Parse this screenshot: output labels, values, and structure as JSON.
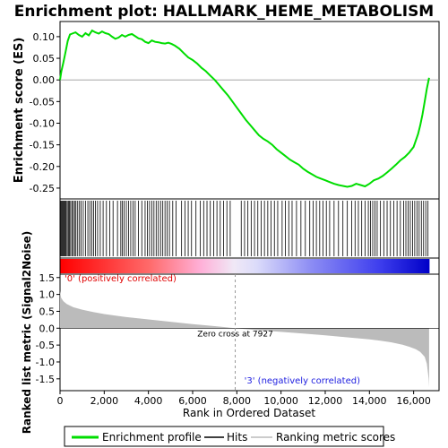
{
  "chart_data": {
    "type": "line",
    "title": "Enrichment plot: HALLMARK_HEME_METABOLISM",
    "es_panel": {
      "ylabel": "Enrichment score (ES)",
      "ylim": [
        -0.275,
        0.135
      ],
      "yticks": [
        0.1,
        0.05,
        0.0,
        -0.05,
        -0.1,
        -0.15,
        -0.2,
        -0.25
      ],
      "ytick_labels": [
        "0.10",
        "0.05",
        "0.00",
        "-0.05",
        "-0.10",
        "-0.15",
        "-0.20",
        "-0.25"
      ],
      "series": [
        {
          "name": "Enrichment profile",
          "color": "#00dd00",
          "x": [
            0,
            60,
            150,
            250,
            350,
            450,
            550,
            700,
            850,
            1000,
            1150,
            1300,
            1450,
            1600,
            1750,
            1900,
            2050,
            2200,
            2350,
            2500,
            2650,
            2800,
            2950,
            3100,
            3250,
            3400,
            3550,
            3700,
            3850,
            4000,
            4150,
            4300,
            4450,
            4600,
            4750,
            4900,
            5050,
            5200,
            5400,
            5600,
            5800,
            6000,
            6200,
            6400,
            6600,
            6800,
            7000,
            7200,
            7400,
            7600,
            7800,
            8000,
            8200,
            8400,
            8600,
            8800,
            9000,
            9200,
            9400,
            9600,
            9800,
            10000,
            10200,
            10400,
            10600,
            10800,
            11000,
            11200,
            11400,
            11600,
            11800,
            12000,
            12200,
            12400,
            12600,
            12800,
            13000,
            13200,
            13400,
            13600,
            13800,
            14000,
            14200,
            14400,
            14600,
            14800,
            15000,
            15200,
            15400,
            15600,
            15800,
            16000,
            16100,
            16200,
            16300,
            16400,
            16500,
            16600,
            16700
          ],
          "y": [
            0.0,
            0.02,
            0.04,
            0.065,
            0.09,
            0.105,
            0.107,
            0.11,
            0.104,
            0.1,
            0.108,
            0.103,
            0.114,
            0.11,
            0.107,
            0.112,
            0.108,
            0.106,
            0.1,
            0.095,
            0.098,
            0.104,
            0.1,
            0.104,
            0.106,
            0.101,
            0.096,
            0.094,
            0.088,
            0.085,
            0.091,
            0.088,
            0.087,
            0.085,
            0.084,
            0.086,
            0.083,
            0.079,
            0.072,
            0.062,
            0.052,
            0.046,
            0.038,
            0.028,
            0.02,
            0.01,
            0.0,
            -0.012,
            -0.024,
            -0.036,
            -0.05,
            -0.064,
            -0.078,
            -0.092,
            -0.104,
            -0.116,
            -0.128,
            -0.136,
            -0.142,
            -0.15,
            -0.16,
            -0.168,
            -0.176,
            -0.184,
            -0.19,
            -0.196,
            -0.205,
            -0.212,
            -0.218,
            -0.224,
            -0.228,
            -0.232,
            -0.236,
            -0.24,
            -0.243,
            -0.245,
            -0.247,
            -0.245,
            -0.24,
            -0.243,
            -0.246,
            -0.24,
            -0.232,
            -0.228,
            -0.222,
            -0.214,
            -0.205,
            -0.196,
            -0.186,
            -0.178,
            -0.168,
            -0.155,
            -0.14,
            -0.125,
            -0.105,
            -0.08,
            -0.05,
            -0.02,
            0.005
          ]
        }
      ]
    },
    "hits_panel": {
      "name": "Hits",
      "hit_ranks": [
        40,
        80,
        120,
        160,
        200,
        240,
        280,
        330,
        380,
        430,
        480,
        540,
        600,
        660,
        720,
        800,
        880,
        950,
        1050,
        1150,
        1260,
        1350,
        1440,
        1520,
        1600,
        1700,
        1820,
        1950,
        2100,
        2250,
        2400,
        2600,
        2750,
        2820,
        2900,
        3000,
        3100,
        3200,
        3300,
        3400,
        3550,
        3700,
        3850,
        3950,
        4050,
        4150,
        4250,
        4350,
        4450,
        4550,
        4650,
        4750,
        4850,
        4950,
        5100,
        5250,
        5500,
        5650,
        5800,
        5950,
        6150,
        6350,
        6500,
        6650,
        6800,
        6950,
        7100,
        7250,
        7400,
        7550,
        7700,
        8200,
        8350,
        8500,
        8650,
        8800,
        8950,
        9100,
        9250,
        9400,
        9550,
        9700,
        9850,
        10050,
        10200,
        10350,
        10500,
        10700,
        10900,
        11100,
        11300,
        11450,
        11600,
        11750,
        11900,
        12050,
        12200,
        12400,
        12600,
        12800,
        13000,
        13200,
        13350,
        13500,
        13650,
        13800,
        13950,
        14050,
        14150,
        14250,
        14350,
        14500,
        14650,
        14800,
        14950,
        15100,
        15250,
        15400,
        15550,
        15650,
        15750,
        15850,
        15950,
        16050,
        16150,
        16250,
        16350,
        16450,
        16550,
        16650
      ]
    },
    "metric_panel": {
      "name": "Ranking metric scores",
      "ylabel": "Ranked list metric (Signal2Noise)",
      "ylim": [
        -1.85,
        1.6
      ],
      "yticks": [
        1.5,
        1.0,
        0.5,
        0.0,
        -0.5,
        -1.0,
        -1.5
      ],
      "ytick_labels": [
        "1.5",
        "1.0",
        "0.5",
        "0.0",
        "-0.5",
        "-1.0",
        "-1.5"
      ],
      "x": [
        0,
        50,
        150,
        300,
        600,
        1000,
        1500,
        2000,
        3000,
        4000,
        5000,
        6000,
        7000,
        7927,
        9000,
        10000,
        11000,
        12000,
        13000,
        14000,
        14500,
        15000,
        15500,
        15800,
        16100,
        16300,
        16500,
        16600,
        16680,
        16700
      ],
      "y": [
        1.1,
        0.9,
        0.8,
        0.72,
        0.62,
        0.55,
        0.48,
        0.42,
        0.33,
        0.26,
        0.19,
        0.12,
        0.06,
        0.0,
        -0.06,
        -0.11,
        -0.16,
        -0.21,
        -0.27,
        -0.33,
        -0.37,
        -0.42,
        -0.49,
        -0.55,
        -0.62,
        -0.7,
        -0.85,
        -1.05,
        -1.5,
        -1.75
      ],
      "annotations": {
        "positive": "'0' (positively correlated)",
        "negative": "'3' (negatively correlated)",
        "zero_cross": "Zero cross at 7927",
        "zero_cross_rank": 7927
      }
    },
    "x_axis": {
      "xlabel": "Rank in Ordered Dataset",
      "xlim": [
        0,
        17150
      ],
      "xticks": [
        0,
        2000,
        4000,
        6000,
        8000,
        10000,
        12000,
        14000,
        16000
      ],
      "xtick_labels": [
        "0",
        "2,000",
        "4,000",
        "6,000",
        "8,000",
        "10,000",
        "12,000",
        "14,000",
        "16,000"
      ]
    },
    "legend": {
      "placement": "bottom",
      "entries": [
        {
          "label": "Enrichment profile",
          "color": "#00dd00"
        },
        {
          "label": "Hits",
          "color": "#000000"
        },
        {
          "label": "Ranking metric scores",
          "color": "#bbbbbb"
        }
      ]
    },
    "colors": {
      "positive_band": "#ff0000",
      "negative_band": "#0000ff",
      "metric_fill": "#bbbbbb"
    }
  }
}
